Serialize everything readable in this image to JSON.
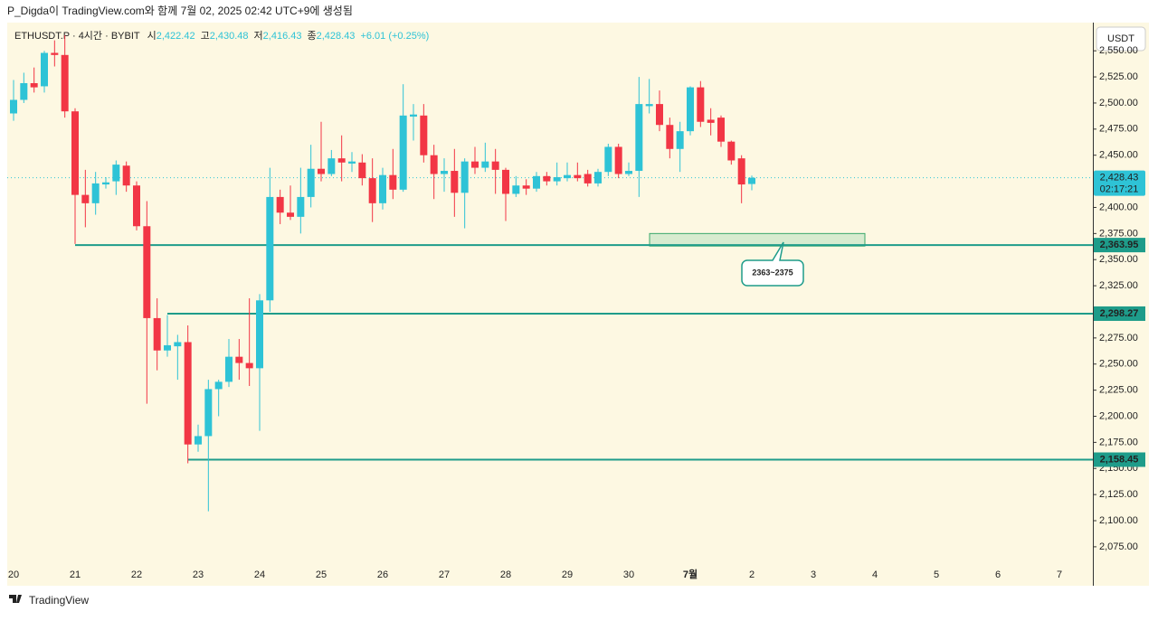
{
  "header": {
    "caption": "P_Digda이 TradingView.com와 함께 7월 02, 2025 02:42 UTC+9에 생성됨",
    "footer": "TradingView",
    "currency": "USDT"
  },
  "legend": {
    "symbol": "ETHUSDT.P · 4시간 · BYBIT",
    "fields": [
      {
        "label": "시",
        "value": "2,422.42"
      },
      {
        "label": "고",
        "value": "2,430.48"
      },
      {
        "label": "저",
        "value": "2,416.43"
      },
      {
        "label": "종",
        "value": "2,428.43"
      }
    ],
    "change": "+6.01 (+0.25%)"
  },
  "chart_data": {
    "type": "candlestick",
    "up_color": "#2ec3d6",
    "down_color": "#f23645",
    "xlabels": [
      "20",
      "21",
      "22",
      "23",
      "24",
      "25",
      "26",
      "27",
      "28",
      "29",
      "30",
      "7월",
      "2",
      "3",
      "4",
      "5",
      "6",
      "7"
    ],
    "open": [
      2490,
      2503,
      2519,
      2516,
      2548,
      2546,
      2492,
      2412,
      2404,
      2422,
      2425,
      2440,
      2421,
      2382,
      2294,
      2263,
      2267,
      2271,
      2173,
      2181,
      2226,
      2233,
      2257,
      2251,
      2246,
      2311,
      2410,
      2395,
      2391,
      2410,
      2437,
      2432,
      2447,
      2442,
      2443,
      2428,
      2404,
      2431,
      2417,
      2487,
      2488,
      2450,
      2432,
      2435,
      2414,
      2444,
      2438,
      2444,
      2436,
      2413,
      2421,
      2418,
      2430,
      2425,
      2428,
      2431,
      2432,
      2423,
      2434,
      2458,
      2432,
      2435,
      2497,
      2499,
      2479,
      2456,
      2473,
      2515,
      2484,
      2486,
      2463,
      2447,
      2422.42
    ],
    "high": [
      2522,
      2529,
      2534,
      2550,
      2560,
      2565,
      2495,
      2436,
      2434,
      2429,
      2445,
      2444,
      2425,
      2406,
      2313,
      2297,
      2278,
      2287,
      2192,
      2235,
      2235,
      2274,
      2274,
      2313,
      2317,
      2438,
      2417,
      2421,
      2438,
      2460,
      2482,
      2455,
      2469,
      2453,
      2451,
      2447,
      2438,
      2456,
      2518,
      2499,
      2499,
      2460,
      2447,
      2456,
      2447,
      2458,
      2462,
      2456,
      2438,
      2430,
      2427,
      2434,
      2434,
      2443,
      2443,
      2443,
      2436,
      2437,
      2461,
      2461,
      2443,
      2525,
      2523,
      2512,
      2486,
      2482,
      2516,
      2521,
      2495,
      2488,
      2464,
      2450,
      2430.48
    ],
    "low": [
      2483,
      2500,
      2510,
      2510,
      2535,
      2486,
      2365,
      2381,
      2393,
      2418,
      2412,
      2415,
      2378,
      2212,
      2244,
      2257,
      2235,
      2155,
      2166,
      2109,
      2200,
      2228,
      2235,
      2229,
      2186,
      2300,
      2384,
      2388,
      2375,
      2400,
      2425,
      2430,
      2425,
      2434,
      2421,
      2386,
      2398,
      2408,
      2415,
      2464,
      2443,
      2408,
      2415,
      2391,
      2380,
      2432,
      2434,
      2413,
      2387,
      2410,
      2412,
      2415,
      2421,
      2421,
      2425,
      2425,
      2420,
      2420,
      2430,
      2428,
      2430,
      2410,
      2490,
      2473,
      2447,
      2434,
      2469,
      2477,
      2469,
      2458,
      2441,
      2404,
      2416.43
    ],
    "close": [
      2503,
      2519,
      2515,
      2548,
      2546,
      2492,
      2412,
      2404,
      2423,
      2424,
      2441,
      2421,
      2382,
      2294,
      2263,
      2268,
      2271,
      2173,
      2181,
      2226,
      2233,
      2257,
      2251,
      2246,
      2311,
      2410,
      2395,
      2391,
      2410,
      2437,
      2432,
      2447,
      2443,
      2444,
      2428,
      2404,
      2431,
      2417,
      2488,
      2489,
      2450,
      2432,
      2435,
      2414,
      2444,
      2438,
      2444,
      2436,
      2413,
      2421,
      2418,
      2430,
      2425,
      2429,
      2431,
      2428,
      2423,
      2434,
      2458,
      2432,
      2435,
      2499,
      2499,
      2479,
      2456,
      2473,
      2515,
      2482,
      2481,
      2463,
      2445,
      2422,
      2428.43
    ],
    "ylim": [
      2057.6,
      2577
    ],
    "yticks": [
      {
        "value": 2075,
        "label": "2,075.00"
      },
      {
        "value": 2100,
        "label": "2,100.00"
      },
      {
        "value": 2125,
        "label": "2,125.00"
      },
      {
        "value": 2150,
        "label": "2,150.00"
      },
      {
        "value": 2175,
        "label": "2,175.00"
      },
      {
        "value": 2200,
        "label": "2,200.00"
      },
      {
        "value": 2225,
        "label": "2,225.00"
      },
      {
        "value": 2250,
        "label": "2,250.00"
      },
      {
        "value": 2275,
        "label": "2,275.00"
      },
      {
        "value": 2300,
        "label": "2,300.00"
      },
      {
        "value": 2325,
        "label": "2,325.00"
      },
      {
        "value": 2350,
        "label": "2,350.00"
      },
      {
        "value": 2375,
        "label": "2,375.00"
      },
      {
        "value": 2400,
        "label": "2,400.00"
      },
      {
        "value": 2425,
        "label": "2,425.00"
      },
      {
        "value": 2450,
        "label": "2,450.00"
      },
      {
        "value": 2475,
        "label": "2,475.00"
      },
      {
        "value": 2500,
        "label": "2,500.00"
      },
      {
        "value": 2525,
        "label": "2,525.00"
      },
      {
        "value": 2550,
        "label": "2,550.00"
      }
    ],
    "levels": [
      {
        "value": 2363.95,
        "label": "2,363.95"
      },
      {
        "value": 2298.27,
        "label": "2,298.27"
      },
      {
        "value": 2158.45,
        "label": "2,158.45"
      }
    ],
    "level_color": "#1e9c8a",
    "current": {
      "value": 2428.43,
      "label": "2,428.43",
      "countdown": "02:17:21"
    },
    "zone": {
      "low": 2363,
      "high": 2375,
      "label": "2363~2375"
    }
  }
}
